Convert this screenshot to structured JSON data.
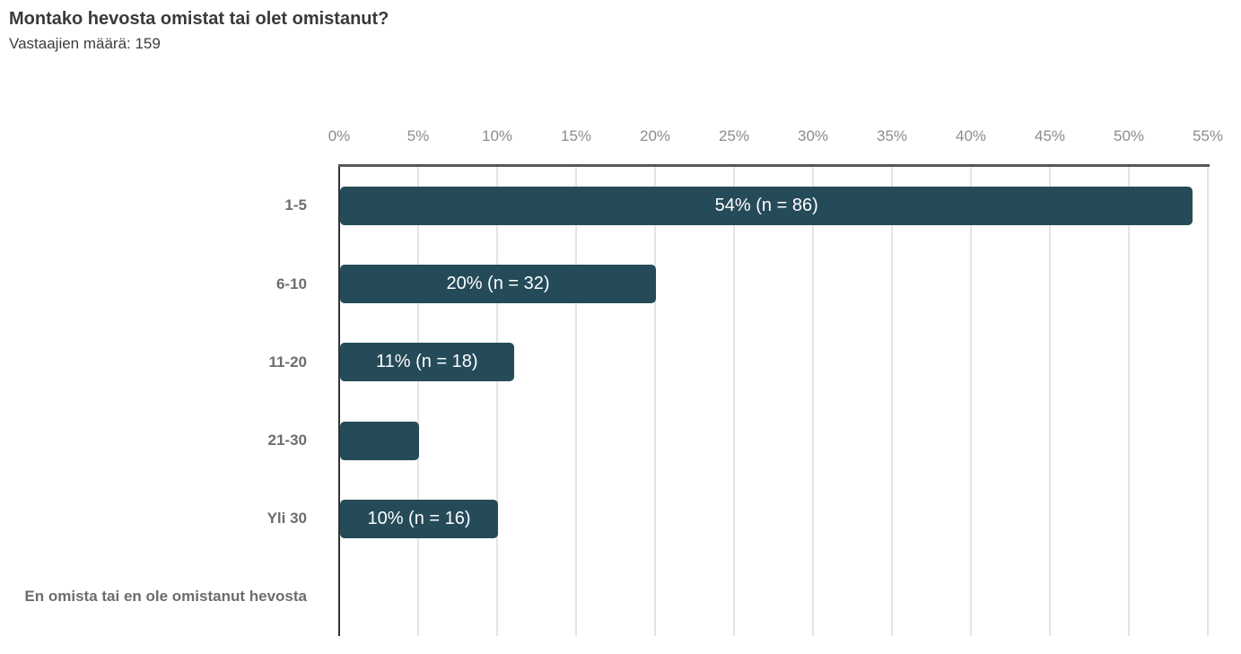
{
  "chart_data": {
    "type": "bar",
    "orientation": "horizontal",
    "title": "Montako hevosta omistat tai olet omistanut?",
    "subtitle": "Vastaajien määrä: 159",
    "respondents": 159,
    "categories": [
      "1-5",
      "6-10",
      "11-20",
      "21-30",
      "Yli 30",
      "En omista tai en ole omistanut hevosta"
    ],
    "values": [
      54,
      20,
      11,
      5,
      10,
      0
    ],
    "bars": [
      {
        "category": "1-5",
        "value": 54,
        "label": "54% (n = 86)",
        "n": 86
      },
      {
        "category": "6-10",
        "value": 20,
        "label": "20% (n = 32)",
        "n": 32
      },
      {
        "category": "11-20",
        "value": 11,
        "label": "11% (n = 18)",
        "n": 18
      },
      {
        "category": "21-30",
        "value": 5,
        "label": ""
      },
      {
        "category": "Yli 30",
        "value": 10,
        "label": "10% (n = 16)",
        "n": 16
      },
      {
        "category": "En omista tai en ole omistanut hevosta",
        "value": 0,
        "label": ""
      }
    ],
    "x_ticks": [
      "0%",
      "5%",
      "10%",
      "15%",
      "20%",
      "25%",
      "30%",
      "35%",
      "40%",
      "45%",
      "50%",
      "55%"
    ],
    "xlim": [
      0,
      55
    ],
    "grid": true,
    "legend": false,
    "colors": {
      "bar": "#254b59",
      "bar_label": "#ffffff",
      "grid": "#e4e4e4",
      "x_axis": "#58585a",
      "y_axis": "#333333",
      "tick_label": "#8c8c8c",
      "category_label": "#6d6d6d",
      "title": "#3a3a3a",
      "subtitle": "#3d3d3d"
    }
  }
}
